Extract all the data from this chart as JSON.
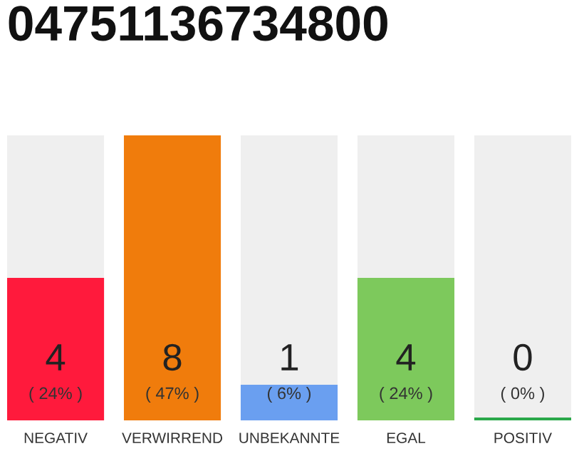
{
  "chart_data": {
    "type": "bar",
    "title": "04751136734800",
    "categories": [
      "NEGATIV",
      "VERWIRREND",
      "UNBEKANNTE",
      "EGAL",
      "POSITIV"
    ],
    "values": [
      4,
      8,
      1,
      4,
      0
    ],
    "colors": [
      "#ff1a3c",
      "#f07c0c",
      "#6a9ff0",
      "#7dc95c",
      "#2aa84a"
    ],
    "data_labels": true,
    "annotations": [
      "( 24% )",
      "( 47% )",
      "( 6% )",
      "( 24% )",
      "( 0% )"
    ],
    "grid": false,
    "legend": false
  }
}
